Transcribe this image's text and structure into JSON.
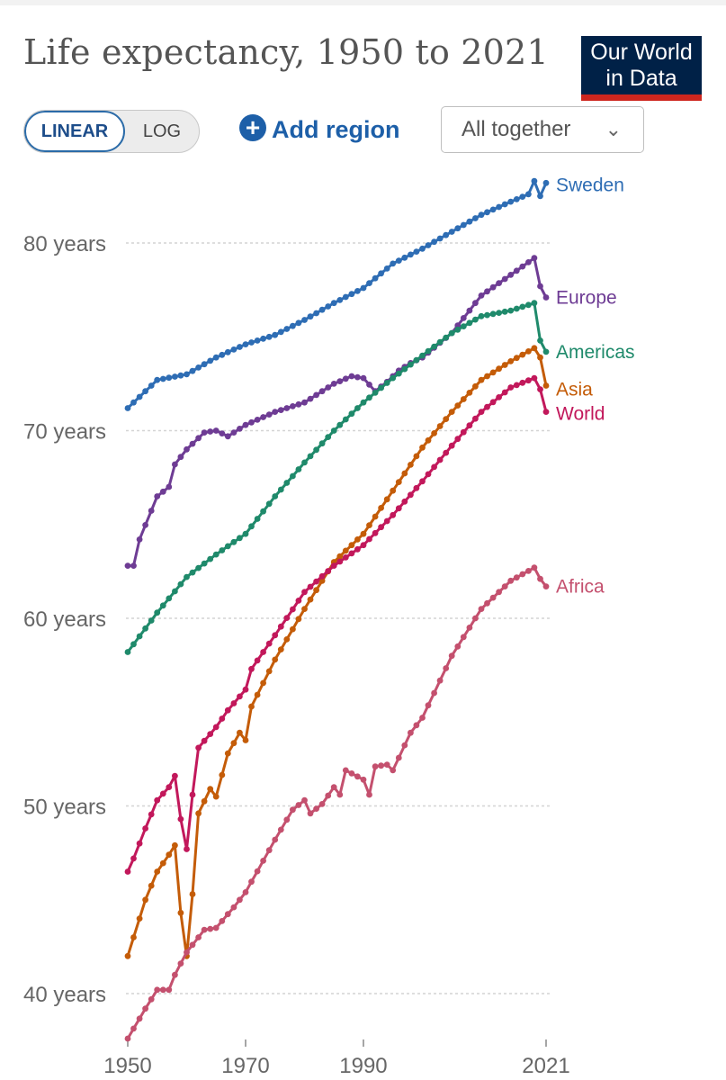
{
  "header": {
    "title": "Life expectancy, 1950 to 2021",
    "logo_line1": "Our World",
    "logo_line2": "in Data"
  },
  "controls": {
    "linear_label": "LINEAR",
    "log_label": "LOG",
    "active_scale": "linear",
    "add_region_label": "Add region",
    "dropdown_value": "All together",
    "chevron_icon": "chevron-down-icon",
    "plus_icon": "plus-circle-icon"
  },
  "chart_data": {
    "type": "line",
    "title": "Life expectancy, 1950 to 2021",
    "xlabel": "",
    "ylabel": "",
    "xlim": [
      1950,
      2021
    ],
    "ylim": [
      37,
      84
    ],
    "y_ticks": [
      40,
      50,
      60,
      70,
      80
    ],
    "y_tick_labels": [
      "40 years",
      "50 years",
      "60 years",
      "70 years",
      "80 years"
    ],
    "x_ticks": [
      1950,
      1970,
      1990,
      2021
    ],
    "x_tick_labels": [
      "1950",
      "1970",
      "1990",
      "2021"
    ],
    "grid": "horizontal dashed",
    "legend": "inline labels at right end",
    "series": [
      {
        "name": "Sweden",
        "color": "#2e6db4",
        "values": [
          [
            1950,
            71.2
          ],
          [
            1955,
            72.7
          ],
          [
            1960,
            73.0
          ],
          [
            1965,
            73.9
          ],
          [
            1970,
            74.6
          ],
          [
            1975,
            75.1
          ],
          [
            1980,
            75.9
          ],
          [
            1985,
            76.8
          ],
          [
            1990,
            77.6
          ],
          [
            1995,
            78.9
          ],
          [
            2000,
            79.7
          ],
          [
            2005,
            80.6
          ],
          [
            2010,
            81.5
          ],
          [
            2015,
            82.2
          ],
          [
            2018,
            82.6
          ],
          [
            2019,
            83.3
          ],
          [
            2020,
            82.5
          ],
          [
            2021,
            83.2
          ]
        ]
      },
      {
        "name": "Europe",
        "color": "#6e3c94",
        "values": [
          [
            1950,
            62.8
          ],
          [
            1951,
            62.8
          ],
          [
            1952,
            64.2
          ],
          [
            1955,
            66.5
          ],
          [
            1957,
            67.0
          ],
          [
            1958,
            68.2
          ],
          [
            1960,
            69.0
          ],
          [
            1963,
            69.9
          ],
          [
            1965,
            70.0
          ],
          [
            1967,
            69.7
          ],
          [
            1970,
            70.3
          ],
          [
            1975,
            71.0
          ],
          [
            1980,
            71.5
          ],
          [
            1985,
            72.5
          ],
          [
            1988,
            72.9
          ],
          [
            1990,
            72.8
          ],
          [
            1992,
            72.1
          ],
          [
            1994,
            72.6
          ],
          [
            1996,
            73.2
          ],
          [
            1998,
            73.6
          ],
          [
            2000,
            73.9
          ],
          [
            2005,
            75.2
          ],
          [
            2010,
            77.2
          ],
          [
            2015,
            78.3
          ],
          [
            2019,
            79.2
          ],
          [
            2020,
            77.7
          ],
          [
            2021,
            77.1
          ]
        ]
      },
      {
        "name": "Americas",
        "color": "#1f8a6b",
        "values": [
          [
            1950,
            58.2
          ],
          [
            1955,
            60.3
          ],
          [
            1960,
            62.2
          ],
          [
            1965,
            63.4
          ],
          [
            1970,
            64.5
          ],
          [
            1975,
            66.5
          ],
          [
            1980,
            68.3
          ],
          [
            1985,
            70.0
          ],
          [
            1990,
            71.5
          ],
          [
            1995,
            72.8
          ],
          [
            2000,
            74.0
          ],
          [
            2005,
            75.2
          ],
          [
            2010,
            76.1
          ],
          [
            2015,
            76.4
          ],
          [
            2019,
            76.8
          ],
          [
            2020,
            74.8
          ],
          [
            2021,
            74.2
          ]
        ]
      },
      {
        "name": "Asia",
        "color": "#c45c08",
        "values": [
          [
            1950,
            42.0
          ],
          [
            1951,
            43.0
          ],
          [
            1953,
            45.0
          ],
          [
            1955,
            46.5
          ],
          [
            1957,
            47.4
          ],
          [
            1958,
            47.9
          ],
          [
            1959,
            44.3
          ],
          [
            1960,
            42.0
          ],
          [
            1961,
            45.3
          ],
          [
            1962,
            49.6
          ],
          [
            1964,
            50.9
          ],
          [
            1965,
            50.5
          ],
          [
            1967,
            52.8
          ],
          [
            1969,
            53.9
          ],
          [
            1970,
            53.5
          ],
          [
            1971,
            55.3
          ],
          [
            1975,
            57.8
          ],
          [
            1980,
            60.5
          ],
          [
            1985,
            63.0
          ],
          [
            1990,
            64.5
          ],
          [
            1995,
            66.8
          ],
          [
            2000,
            69.1
          ],
          [
            2005,
            71.0
          ],
          [
            2010,
            72.7
          ],
          [
            2015,
            73.7
          ],
          [
            2019,
            74.4
          ],
          [
            2020,
            73.9
          ],
          [
            2021,
            72.4
          ]
        ]
      },
      {
        "name": "World",
        "color": "#c2185b",
        "values": [
          [
            1950,
            46.5
          ],
          [
            1951,
            47.2
          ],
          [
            1953,
            48.8
          ],
          [
            1955,
            50.3
          ],
          [
            1957,
            51.0
          ],
          [
            1958,
            51.6
          ],
          [
            1959,
            49.3
          ],
          [
            1960,
            47.7
          ],
          [
            1961,
            50.6
          ],
          [
            1962,
            53.1
          ],
          [
            1965,
            54.2
          ],
          [
            1967,
            55.1
          ],
          [
            1970,
            56.2
          ],
          [
            1971,
            57.3
          ],
          [
            1975,
            59.1
          ],
          [
            1980,
            61.4
          ],
          [
            1985,
            62.8
          ],
          [
            1990,
            63.9
          ],
          [
            1995,
            65.5
          ],
          [
            2000,
            67.3
          ],
          [
            2005,
            69.2
          ],
          [
            2010,
            71.0
          ],
          [
            2015,
            72.3
          ],
          [
            2019,
            72.8
          ],
          [
            2020,
            72.2
          ],
          [
            2021,
            71.0
          ]
        ]
      },
      {
        "name": "Africa",
        "color": "#c4506e",
        "values": [
          [
            1950,
            37.6
          ],
          [
            1953,
            39.2
          ],
          [
            1955,
            40.2
          ],
          [
            1957,
            40.2
          ],
          [
            1958,
            41.0
          ],
          [
            1960,
            42.2
          ],
          [
            1963,
            43.4
          ],
          [
            1965,
            43.5
          ],
          [
            1968,
            44.6
          ],
          [
            1970,
            45.4
          ],
          [
            1975,
            48.2
          ],
          [
            1978,
            49.8
          ],
          [
            1980,
            50.3
          ],
          [
            1981,
            49.6
          ],
          [
            1983,
            50.1
          ],
          [
            1985,
            51.0
          ],
          [
            1986,
            50.6
          ],
          [
            1987,
            51.9
          ],
          [
            1990,
            51.4
          ],
          [
            1991,
            50.6
          ],
          [
            1992,
            52.1
          ],
          [
            1994,
            52.2
          ],
          [
            1995,
            51.9
          ],
          [
            1998,
            53.9
          ],
          [
            2000,
            54.7
          ],
          [
            2005,
            58.0
          ],
          [
            2010,
            60.5
          ],
          [
            2015,
            62.0
          ],
          [
            2019,
            62.7
          ],
          [
            2020,
            62.1
          ],
          [
            2021,
            61.7
          ]
        ]
      }
    ]
  }
}
